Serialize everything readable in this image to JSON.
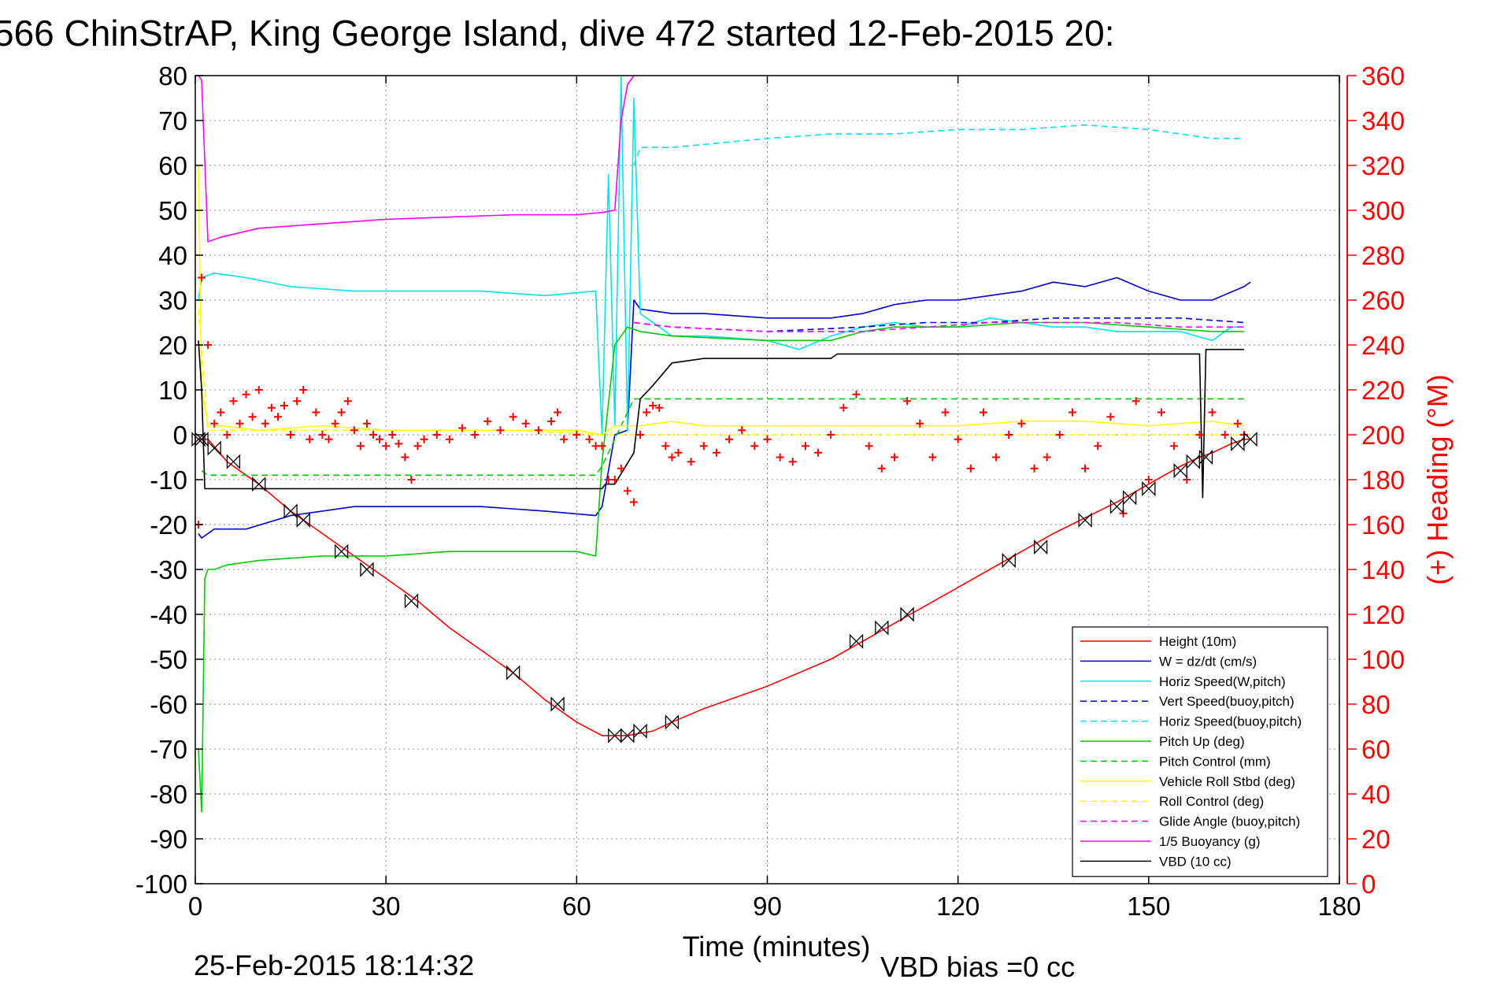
{
  "chart_data": {
    "type": "line",
    "title": "566 ChinStrAP, King George Island, dive 472 started 12-Feb-2015 20:",
    "xlabel": "Time (minutes)",
    "ylabel": "",
    "y2label": "(+) Heading (°M)",
    "xlim": [
      0,
      180
    ],
    "ylim": [
      -100,
      80
    ],
    "y2lim": [
      0,
      360
    ],
    "x_ticks": [
      "0",
      "30",
      "60",
      "90",
      "120",
      "150",
      "180"
    ],
    "y_ticks": [
      "80",
      "70",
      "60",
      "50",
      "40",
      "30",
      "20",
      "10",
      "0",
      "-10",
      "-20",
      "-30",
      "-40",
      "-50",
      "-60",
      "-70",
      "-80",
      "-90",
      "-100"
    ],
    "y2_ticks": [
      "360",
      "340",
      "320",
      "300",
      "280",
      "260",
      "240",
      "220",
      "200",
      "180",
      "160",
      "140",
      "120",
      "100",
      "80",
      "60",
      "40",
      "20",
      "0"
    ],
    "grid": true,
    "legend_position": "bottom-right",
    "footer_date": "25-Feb-2015 18:14:32",
    "footer_vbd": "VBD bias =0 cc",
    "series": [
      {
        "name": "Height (10m)",
        "color": "#ff0000",
        "dash": "solid",
        "x": [
          0.5,
          2,
          5,
          10,
          15,
          20,
          25,
          30,
          35,
          40,
          45,
          50,
          55,
          60,
          64,
          66,
          68,
          70,
          72,
          75,
          80,
          85,
          90,
          95,
          100,
          105,
          110,
          115,
          120,
          125,
          130,
          135,
          140,
          145,
          150,
          155,
          158,
          160,
          163,
          165,
          166
        ],
        "y": [
          -1,
          -1,
          -6,
          -11,
          -17,
          -22,
          -27,
          -32,
          -37,
          -43,
          -48,
          -53,
          -59,
          -64,
          -67,
          -67,
          -67,
          -66.5,
          -66,
          -64,
          -61,
          -58.5,
          -56,
          -53,
          -50,
          -46,
          -42,
          -38,
          -34,
          -30,
          -26,
          -22,
          -18.5,
          -15,
          -11,
          -7,
          -5,
          -4,
          -2,
          -1,
          -1
        ]
      },
      {
        "name": "W = dz/dt (cm/s)",
        "color": "#0000cc",
        "dash": "solid",
        "x": [
          0.5,
          1,
          3,
          8,
          15,
          25,
          35,
          45,
          55,
          63,
          64,
          66,
          68,
          69,
          70,
          75,
          80,
          90,
          100,
          105,
          110,
          115,
          120,
          125,
          130,
          135,
          140,
          145,
          150,
          155,
          160,
          165,
          166
        ],
        "y": [
          -22,
          -23,
          -21,
          -21,
          -18,
          -16,
          -16,
          -16,
          -17,
          -18,
          -16,
          0,
          1,
          30,
          28,
          27,
          27,
          26,
          26,
          27,
          29,
          30,
          30,
          31,
          32,
          34,
          33,
          35,
          32,
          30,
          30,
          33,
          34
        ]
      },
      {
        "name": "Horiz Speed(W,pitch)",
        "color": "#00e5ee",
        "dash": "solid",
        "x": [
          0.5,
          1,
          3,
          8,
          15,
          25,
          35,
          45,
          55,
          63,
          64,
          65,
          66,
          67,
          68,
          69,
          70,
          75,
          80,
          90,
          95,
          100,
          105,
          110,
          115,
          120,
          125,
          130,
          135,
          140,
          145,
          150,
          155,
          160,
          163,
          165
        ],
        "y": [
          30,
          35,
          36,
          35,
          33,
          32,
          32,
          32,
          31,
          32,
          0,
          58,
          2,
          80,
          1,
          75,
          27,
          22,
          22,
          21,
          19,
          22,
          24,
          25,
          24,
          24,
          26,
          25,
          24,
          24,
          23,
          23,
          23,
          21,
          24,
          24
        ]
      },
      {
        "name": "Vert Speed(buoy,pitch)",
        "color": "#0000cc",
        "dash": "dashed",
        "x": [
          69,
          75,
          90,
          105,
          115,
          125,
          135,
          145,
          155,
          165
        ],
        "y": [
          25,
          24,
          23,
          24,
          25,
          25,
          26,
          26,
          26,
          25
        ]
      },
      {
        "name": "Horiz Speed(buoy,pitch)",
        "color": "#00e5ee",
        "dash": "dashed",
        "x": [
          69,
          70,
          75,
          90,
          100,
          110,
          120,
          130,
          140,
          150,
          160,
          165
        ],
        "y": [
          60,
          64,
          64,
          66,
          67,
          67,
          68,
          68,
          69,
          68,
          66,
          66
        ]
      },
      {
        "name": "Pitch Up (deg)",
        "color": "#00cc00",
        "dash": "solid",
        "x": [
          0.5,
          1,
          1.5,
          2,
          3,
          5,
          10,
          20,
          30,
          40,
          50,
          60,
          63,
          64,
          66,
          68,
          70,
          75,
          90,
          100,
          105,
          110,
          120,
          130,
          140,
          150,
          160,
          165
        ],
        "y": [
          -70,
          -84,
          -32,
          -30,
          -30,
          -29,
          -28,
          -27,
          -27,
          -26,
          -26,
          -26,
          -27,
          -6,
          20,
          24,
          23,
          22,
          21,
          21,
          23,
          24,
          24,
          25,
          25,
          24,
          23,
          23
        ]
      },
      {
        "name": "Pitch Control (mm)",
        "color": "#00cc00",
        "dash": "dashed",
        "x": [
          1,
          2,
          20,
          40,
          60,
          63,
          64,
          69,
          70,
          100,
          120,
          140,
          160,
          165
        ],
        "y": [
          -8,
          -9,
          -9,
          -9,
          -9,
          -9,
          -7,
          8,
          8,
          8,
          8,
          8,
          8,
          8
        ]
      },
      {
        "name": "Vehicle Roll Stbd (deg)",
        "color": "#ffff00",
        "dash": "solid",
        "x": [
          0.5,
          1,
          2,
          4,
          10,
          20,
          30,
          40,
          50,
          60,
          64,
          66,
          68,
          70,
          75,
          80,
          90,
          100,
          110,
          120,
          130,
          140,
          150,
          160,
          165
        ],
        "y": [
          60,
          10,
          2,
          2,
          1,
          2,
          1,
          1,
          1,
          1,
          0,
          2,
          2,
          2,
          3,
          2,
          2,
          2,
          2,
          2,
          3,
          3,
          2,
          3,
          2
        ]
      },
      {
        "name": "Roll Control (deg)",
        "color": "#ffff00",
        "dash": "dashed",
        "x": [
          0.5,
          2,
          10,
          30,
          50,
          64,
          70,
          100,
          130,
          160,
          166
        ],
        "y": [
          28,
          1,
          1,
          1,
          1,
          0,
          0,
          0,
          0,
          0,
          0
        ]
      },
      {
        "name": "Glide Angle (buoy,pitch)",
        "color": "#ff00ff",
        "dash": "dashed",
        "x": [
          69,
          75,
          90,
          105,
          115,
          125,
          135,
          145,
          155,
          165
        ],
        "y": [
          25,
          24,
          23,
          23,
          24,
          25,
          25,
          25,
          24,
          24
        ]
      },
      {
        "name": "1/5 Buoyancy (g)",
        "color": "#ff00ff",
        "dash": "solid",
        "x": [
          0.5,
          1,
          2,
          4,
          10,
          20,
          30,
          40,
          50,
          60,
          64,
          66,
          67,
          68,
          69,
          70
        ],
        "y": [
          80,
          79,
          43,
          44,
          46,
          47,
          48,
          48.5,
          49,
          49,
          49.5,
          50,
          70,
          78,
          80,
          82
        ]
      },
      {
        "name": "VBD (10 cc)",
        "color": "#000000",
        "dash": "solid",
        "x": [
          0.5,
          1,
          1.5,
          64,
          64.5,
          66,
          69,
          70,
          72,
          75,
          80,
          100,
          101,
          130,
          158,
          158.5,
          159,
          165
        ],
        "y": [
          21,
          10,
          -12,
          -12,
          -11,
          -11,
          -4,
          8,
          11,
          16,
          17,
          17,
          18,
          18,
          18,
          -14,
          19,
          19
        ]
      }
    ],
    "heading": {
      "name": "(+) Heading",
      "color": "#ff0000",
      "x": [
        0.5,
        1,
        2,
        3,
        4,
        5,
        6,
        7,
        8,
        9,
        10,
        11,
        12,
        13,
        14,
        15,
        16,
        17,
        18,
        19,
        20,
        21,
        22,
        23,
        24,
        25,
        26,
        27,
        28,
        29,
        30,
        31,
        32,
        33,
        34,
        35,
        36,
        38,
        40,
        42,
        44,
        46,
        48,
        50,
        52,
        54,
        56,
        57,
        58,
        60,
        62,
        63,
        64,
        65,
        66,
        67,
        68,
        69,
        70,
        71,
        72,
        73,
        74,
        75,
        76,
        78,
        80,
        82,
        84,
        86,
        88,
        90,
        92,
        94,
        96,
        98,
        100,
        102,
        104,
        106,
        108,
        110,
        112,
        114,
        116,
        118,
        120,
        122,
        124,
        126,
        128,
        130,
        132,
        134,
        136,
        138,
        140,
        142,
        144,
        146,
        148,
        150,
        152,
        154,
        156,
        158,
        160,
        162,
        164,
        165
      ],
      "y": [
        160,
        270,
        240,
        205,
        210,
        200,
        215,
        205,
        218,
        208,
        220,
        205,
        212,
        208,
        213,
        200,
        215,
        220,
        198,
        210,
        200,
        198,
        205,
        210,
        215,
        202,
        195,
        205,
        200,
        198,
        195,
        200,
        196,
        190,
        180,
        195,
        198,
        200,
        198,
        203,
        200,
        206,
        202,
        208,
        205,
        202,
        206,
        210,
        198,
        200,
        198,
        195,
        195,
        180,
        180,
        185,
        175,
        170,
        200,
        210,
        213,
        212,
        195,
        190,
        192,
        188,
        195,
        192,
        198,
        202,
        195,
        198,
        190,
        188,
        195,
        192,
        200,
        212,
        218,
        195,
        185,
        190,
        215,
        205,
        190,
        210,
        198,
        185,
        210,
        190,
        200,
        205,
        185,
        190,
        200,
        210,
        185,
        195,
        208,
        165,
        215,
        180,
        210,
        195,
        180,
        200,
        210,
        200,
        205,
        200
      ]
    },
    "markers": {
      "x": [
        0.5,
        1,
        3,
        6,
        10,
        15,
        17,
        23,
        27,
        34,
        50,
        57,
        66,
        68,
        70,
        75,
        104,
        108,
        112,
        128,
        133,
        140,
        145,
        147,
        150,
        155,
        157,
        159,
        164,
        166
      ],
      "y": [
        -1,
        -1,
        -3,
        -6,
        -11,
        -17,
        -19,
        -26,
        -30,
        -37,
        -53,
        -60,
        -67,
        -67,
        -66,
        -64,
        -46,
        -43,
        -40,
        -28,
        -25,
        -19,
        -16,
        -14,
        -12,
        -8,
        -6,
        -5,
        -2,
        -1
      ]
    }
  }
}
